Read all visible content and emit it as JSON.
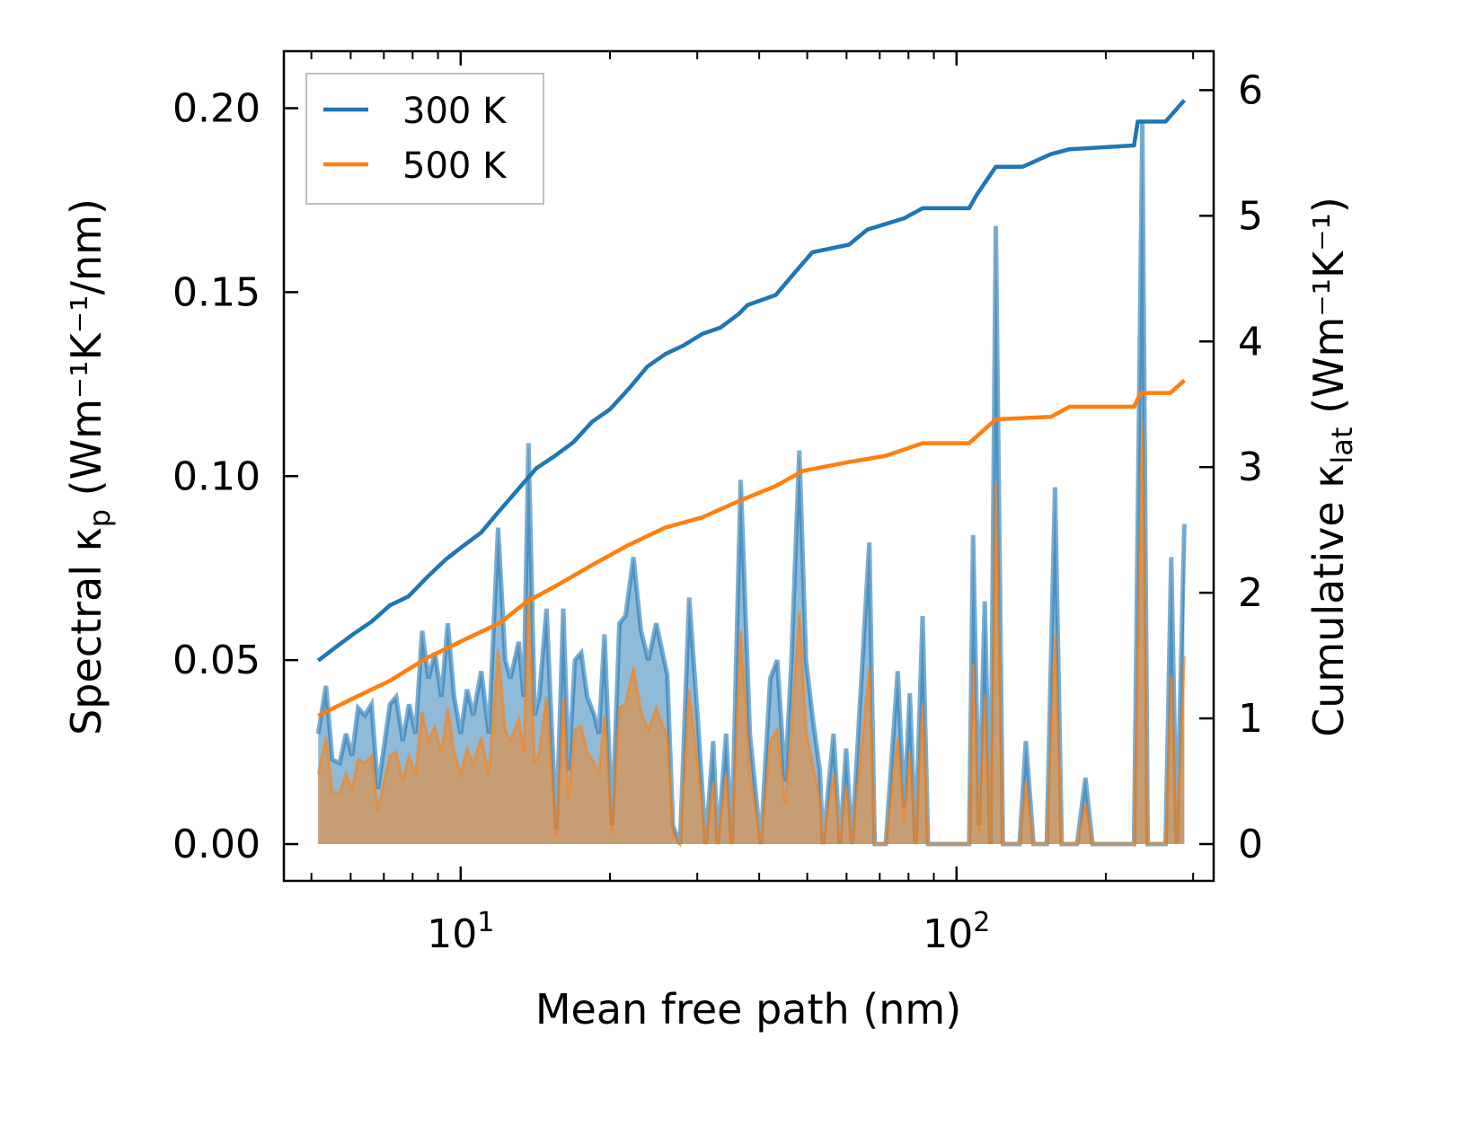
{
  "chart_data": {
    "type": "line",
    "xlabel": "Mean free path (nm)",
    "xscale": "log",
    "xlim": [
      4.4,
      330
    ],
    "x_ticks": [
      {
        "value": 10,
        "base": "10",
        "exp": "1"
      },
      {
        "value": 100,
        "base": "10",
        "exp": "2"
      }
    ],
    "left_axis": {
      "label_prefix": "Spectral κ",
      "label_sub": "p",
      "label_suffix": " (Wm⁻¹K⁻¹/nm)",
      "ylim": [
        -0.01,
        0.2155
      ],
      "ticks": [
        "0.00",
        "0.05",
        "0.10",
        "0.15",
        "0.20"
      ]
    },
    "right_axis": {
      "label_prefix": "Cumulative κ",
      "label_sub": "lat",
      "label_suffix": " (Wm⁻¹K⁻¹)",
      "ylim": [
        -0.293,
        6.31
      ],
      "ticks": [
        "0",
        "1",
        "2",
        "3",
        "4",
        "5",
        "6"
      ]
    },
    "legend": {
      "position": "top-left",
      "entries": [
        "300 K",
        "500 K"
      ]
    },
    "colors": {
      "300 K": "#1f77b4",
      "500 K": "#ff7f0e"
    },
    "spectral_x": [
      5.16,
      5.35,
      5.51,
      5.7,
      5.87,
      6.04,
      6.21,
      6.41,
      6.61,
      6.81,
      6.98,
      7.2,
      7.41,
      7.64,
      7.87,
      8.11,
      8.36,
      8.61,
      8.87,
      9.14,
      9.42,
      9.7,
      10,
      10.3,
      10.6,
      11.0,
      11.4,
      11.9,
      12.3,
      12.6,
      13.1,
      13.4,
      13.7,
      14.1,
      14.4,
      14.9,
      15.3,
      15.6,
      16.1,
      16.5,
      17.0,
      17.5,
      18.0,
      18.6,
      19.0,
      19.5,
      20.2,
      20.9,
      21.5,
      22.3,
      23.1,
      23.9,
      24.8,
      26.1,
      26.8,
      27.7,
      28.9,
      30.2,
      31.2,
      32.3,
      33.0,
      34.3,
      35.2,
      36.7,
      38.3,
      40.3,
      42.1,
      43.5,
      45.1,
      46.4,
      48.2,
      49.7,
      51.2,
      53.0,
      53.8,
      56.5,
      58.2,
      59.9,
      61.5,
      66.7,
      68.4,
      72.0,
      76.1,
      78.4,
      80.5,
      82.6,
      85.4,
      87.6,
      106,
      108,
      111,
      114,
      117,
      120,
      124,
      134,
      138,
      143,
      152,
      158,
      163,
      175,
      182,
      188,
      228,
      237,
      243,
      264,
      271,
      278,
      288
    ],
    "series": [
      {
        "name": "300 K",
        "spectral": [
          0.03,
          0.043,
          0.023,
          0.022,
          0.03,
          0.024,
          0.037,
          0.035,
          0.038,
          0.015,
          0.025,
          0.038,
          0.04,
          0.028,
          0.038,
          0.03,
          0.058,
          0.045,
          0.052,
          0.04,
          0.06,
          0.04,
          0.03,
          0.042,
          0.035,
          0.047,
          0.03,
          0.086,
          0.05,
          0.045,
          0.055,
          0.04,
          0.109,
          0.035,
          0.04,
          0.064,
          0.028,
          0.004,
          0.064,
          0.02,
          0.05,
          0.052,
          0.04,
          0.035,
          0.03,
          0.057,
          0.005,
          0.06,
          0.062,
          0.078,
          0.058,
          0.05,
          0.06,
          0.046,
          0.005,
          0,
          0.067,
          0.03,
          0,
          0.028,
          0,
          0.03,
          0,
          0.099,
          0.03,
          0,
          0.045,
          0.05,
          0.017,
          0.048,
          0.107,
          0.05,
          0.035,
          0.02,
          0,
          0.03,
          0,
          0.026,
          0,
          0.082,
          0,
          0,
          0.047,
          0.01,
          0.041,
          0,
          0.062,
          0,
          0,
          0.084,
          0.005,
          0.066,
          0,
          0.168,
          0,
          0,
          0.028,
          0,
          0,
          0.097,
          0,
          0,
          0.018,
          0,
          0,
          0.196,
          0,
          0,
          0.078,
          0,
          0.087
        ],
        "cumulative_x": [
          5.16,
          5.57,
          6.07,
          6.61,
          7.2,
          7.84,
          8.54,
          9.3,
          10.1,
          11.0,
          11.9,
          13.1,
          14.2,
          15.5,
          16.9,
          18.4,
          20.0,
          21.8,
          23.8,
          25.9,
          28.2,
          30.7,
          33.4,
          36.4,
          37.9,
          43.2,
          47.0,
          51.2,
          60.7,
          66.1,
          78.4,
          85.4,
          106,
          110,
          120,
          136,
          155,
          169,
          228,
          232,
          264,
          288
        ],
        "cumulative": [
          1.46,
          1.56,
          1.67,
          1.77,
          1.9,
          1.97,
          2.12,
          2.26,
          2.37,
          2.48,
          2.64,
          2.83,
          2.99,
          3.09,
          3.2,
          3.36,
          3.46,
          3.62,
          3.8,
          3.9,
          3.97,
          4.06,
          4.11,
          4.22,
          4.29,
          4.37,
          4.54,
          4.71,
          4.77,
          4.89,
          4.98,
          5.06,
          5.06,
          5.17,
          5.39,
          5.39,
          5.49,
          5.53,
          5.56,
          5.75,
          5.75,
          5.92
        ]
      },
      {
        "name": "500 K",
        "spectral": [
          0.019,
          0.029,
          0.014,
          0.014,
          0.019,
          0.015,
          0.023,
          0.022,
          0.024,
          0.009,
          0.016,
          0.024,
          0.025,
          0.017,
          0.024,
          0.019,
          0.036,
          0.028,
          0.032,
          0.025,
          0.037,
          0.025,
          0.019,
          0.026,
          0.022,
          0.029,
          0.019,
          0.053,
          0.031,
          0.028,
          0.034,
          0.025,
          0.068,
          0.022,
          0.025,
          0.04,
          0.017,
          0.002,
          0.04,
          0.012,
          0.031,
          0.032,
          0.025,
          0.022,
          0.019,
          0.035,
          0.003,
          0.037,
          0.038,
          0.048,
          0.036,
          0.031,
          0.037,
          0.029,
          0.003,
          0,
          0.042,
          0.019,
          0,
          0.017,
          0,
          0.019,
          0,
          0.058,
          0.019,
          0,
          0.028,
          0.031,
          0.011,
          0.03,
          0.063,
          0.031,
          0.022,
          0.012,
          0,
          0.019,
          0,
          0.016,
          0,
          0.048,
          0,
          0,
          0.029,
          0.006,
          0.025,
          0,
          0.038,
          0,
          0,
          0.049,
          0.003,
          0.041,
          0,
          0.098,
          0,
          0,
          0.017,
          0,
          0,
          0.057,
          0,
          0,
          0.011,
          0,
          0,
          0.115,
          0,
          0,
          0.046,
          0,
          0.051
        ],
        "cumulative_x": [
          5.16,
          6.07,
          7.2,
          8.54,
          10.1,
          12.0,
          13.6,
          15.5,
          18.4,
          21.8,
          25.9,
          30.7,
          36.4,
          43.2,
          49.0,
          60.7,
          72.0,
          85.4,
          106,
          120,
          155,
          169,
          228,
          235,
          270,
          288
        ],
        "cumulative": [
          1.02,
          1.16,
          1.3,
          1.48,
          1.62,
          1.76,
          1.93,
          2.05,
          2.22,
          2.38,
          2.52,
          2.6,
          2.73,
          2.85,
          2.97,
          3.04,
          3.09,
          3.19,
          3.19,
          3.38,
          3.4,
          3.48,
          3.48,
          3.59,
          3.59,
          3.69
        ]
      }
    ]
  }
}
